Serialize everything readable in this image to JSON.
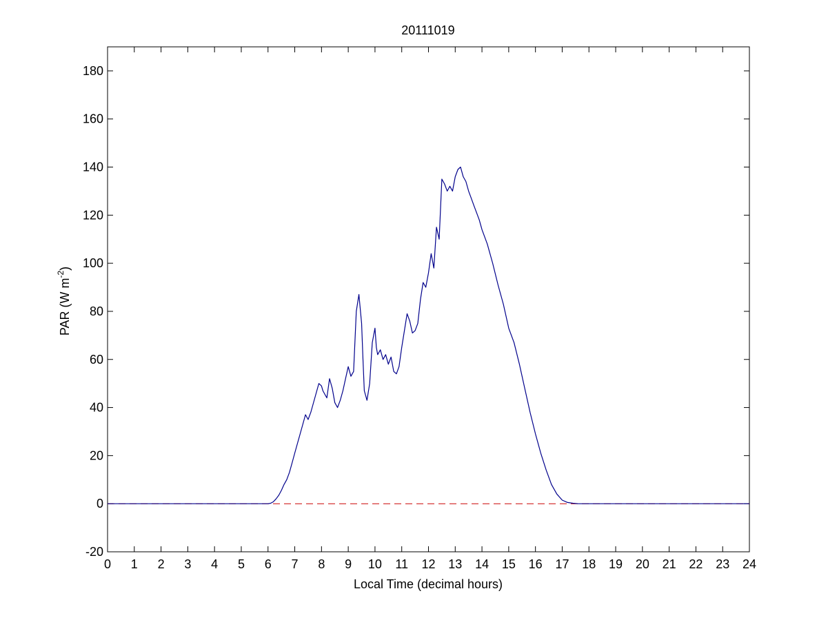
{
  "chart_data": {
    "type": "line",
    "title": "20111019",
    "xlabel": "Local Time (decimal hours)",
    "ylabel_main": "PAR (W m",
    "ylabel_sup": "-2",
    "ylabel_close": ")",
    "xlim": [
      0,
      24
    ],
    "ylim": [
      -20,
      190
    ],
    "xticks": [
      0,
      1,
      2,
      3,
      4,
      5,
      6,
      7,
      8,
      9,
      10,
      11,
      12,
      13,
      14,
      15,
      16,
      17,
      18,
      19,
      20,
      21,
      22,
      23,
      24
    ],
    "yticks": [
      -20,
      0,
      20,
      40,
      60,
      80,
      100,
      120,
      140,
      160,
      180
    ],
    "grid": false,
    "colors": {
      "series": "#00008b",
      "reference": "#cc0000"
    },
    "reference_line": {
      "y": 0,
      "style": "dashed"
    },
    "series": [
      {
        "x": [
          0,
          6.0,
          6.1,
          6.2,
          6.3,
          6.4,
          6.5,
          6.6,
          6.7,
          6.8,
          6.9,
          7.0,
          7.1,
          7.2,
          7.3,
          7.4,
          7.5,
          7.6,
          7.7,
          7.8,
          7.9,
          8.0,
          8.05,
          8.1,
          8.2,
          8.3,
          8.4,
          8.5,
          8.6,
          8.7,
          8.8,
          8.9,
          9.0,
          9.1,
          9.2,
          9.3,
          9.4,
          9.5,
          9.55,
          9.6,
          9.7,
          9.8,
          9.9,
          10.0,
          10.05,
          10.1,
          10.2,
          10.3,
          10.4,
          10.5,
          10.6,
          10.7,
          10.8,
          10.9,
          11.0,
          11.1,
          11.2,
          11.3,
          11.4,
          11.5,
          11.6,
          11.7,
          11.8,
          11.9,
          12.0,
          12.1,
          12.2,
          12.3,
          12.4,
          12.5,
          12.6,
          12.7,
          12.8,
          12.9,
          13.0,
          13.1,
          13.2,
          13.3,
          13.4,
          13.5,
          13.6,
          13.7,
          13.8,
          13.9,
          14.0,
          14.2,
          14.4,
          14.6,
          14.8,
          15.0,
          15.2,
          15.4,
          15.6,
          15.8,
          16.0,
          16.2,
          16.4,
          16.6,
          16.8,
          17.0,
          17.2,
          17.4,
          17.6,
          17.8,
          18.0,
          24
        ],
        "y": [
          0,
          0,
          0.2,
          0.8,
          2.0,
          3.5,
          5.5,
          8,
          10,
          13,
          17,
          21,
          25,
          29,
          33,
          37,
          35,
          38,
          42,
          46,
          50,
          49,
          47,
          46,
          44,
          52,
          48,
          42,
          40,
          43,
          47,
          52,
          57,
          53,
          55,
          80,
          87,
          75,
          60,
          47,
          43,
          50,
          67,
          73,
          65,
          62,
          64,
          60,
          62,
          58,
          61,
          55,
          54,
          57,
          65,
          72,
          79,
          76,
          71,
          72,
          75,
          85,
          92,
          90,
          96,
          104,
          98,
          115,
          110,
          135,
          133,
          130,
          132,
          130,
          136,
          139,
          140,
          136,
          134,
          130,
          127,
          124,
          121,
          118,
          114,
          108,
          100,
          91,
          83,
          73,
          67,
          58,
          48,
          38,
          29,
          21,
          14,
          8,
          4,
          1.5,
          0.5,
          0.2,
          0,
          0,
          0,
          0
        ]
      }
    ]
  }
}
